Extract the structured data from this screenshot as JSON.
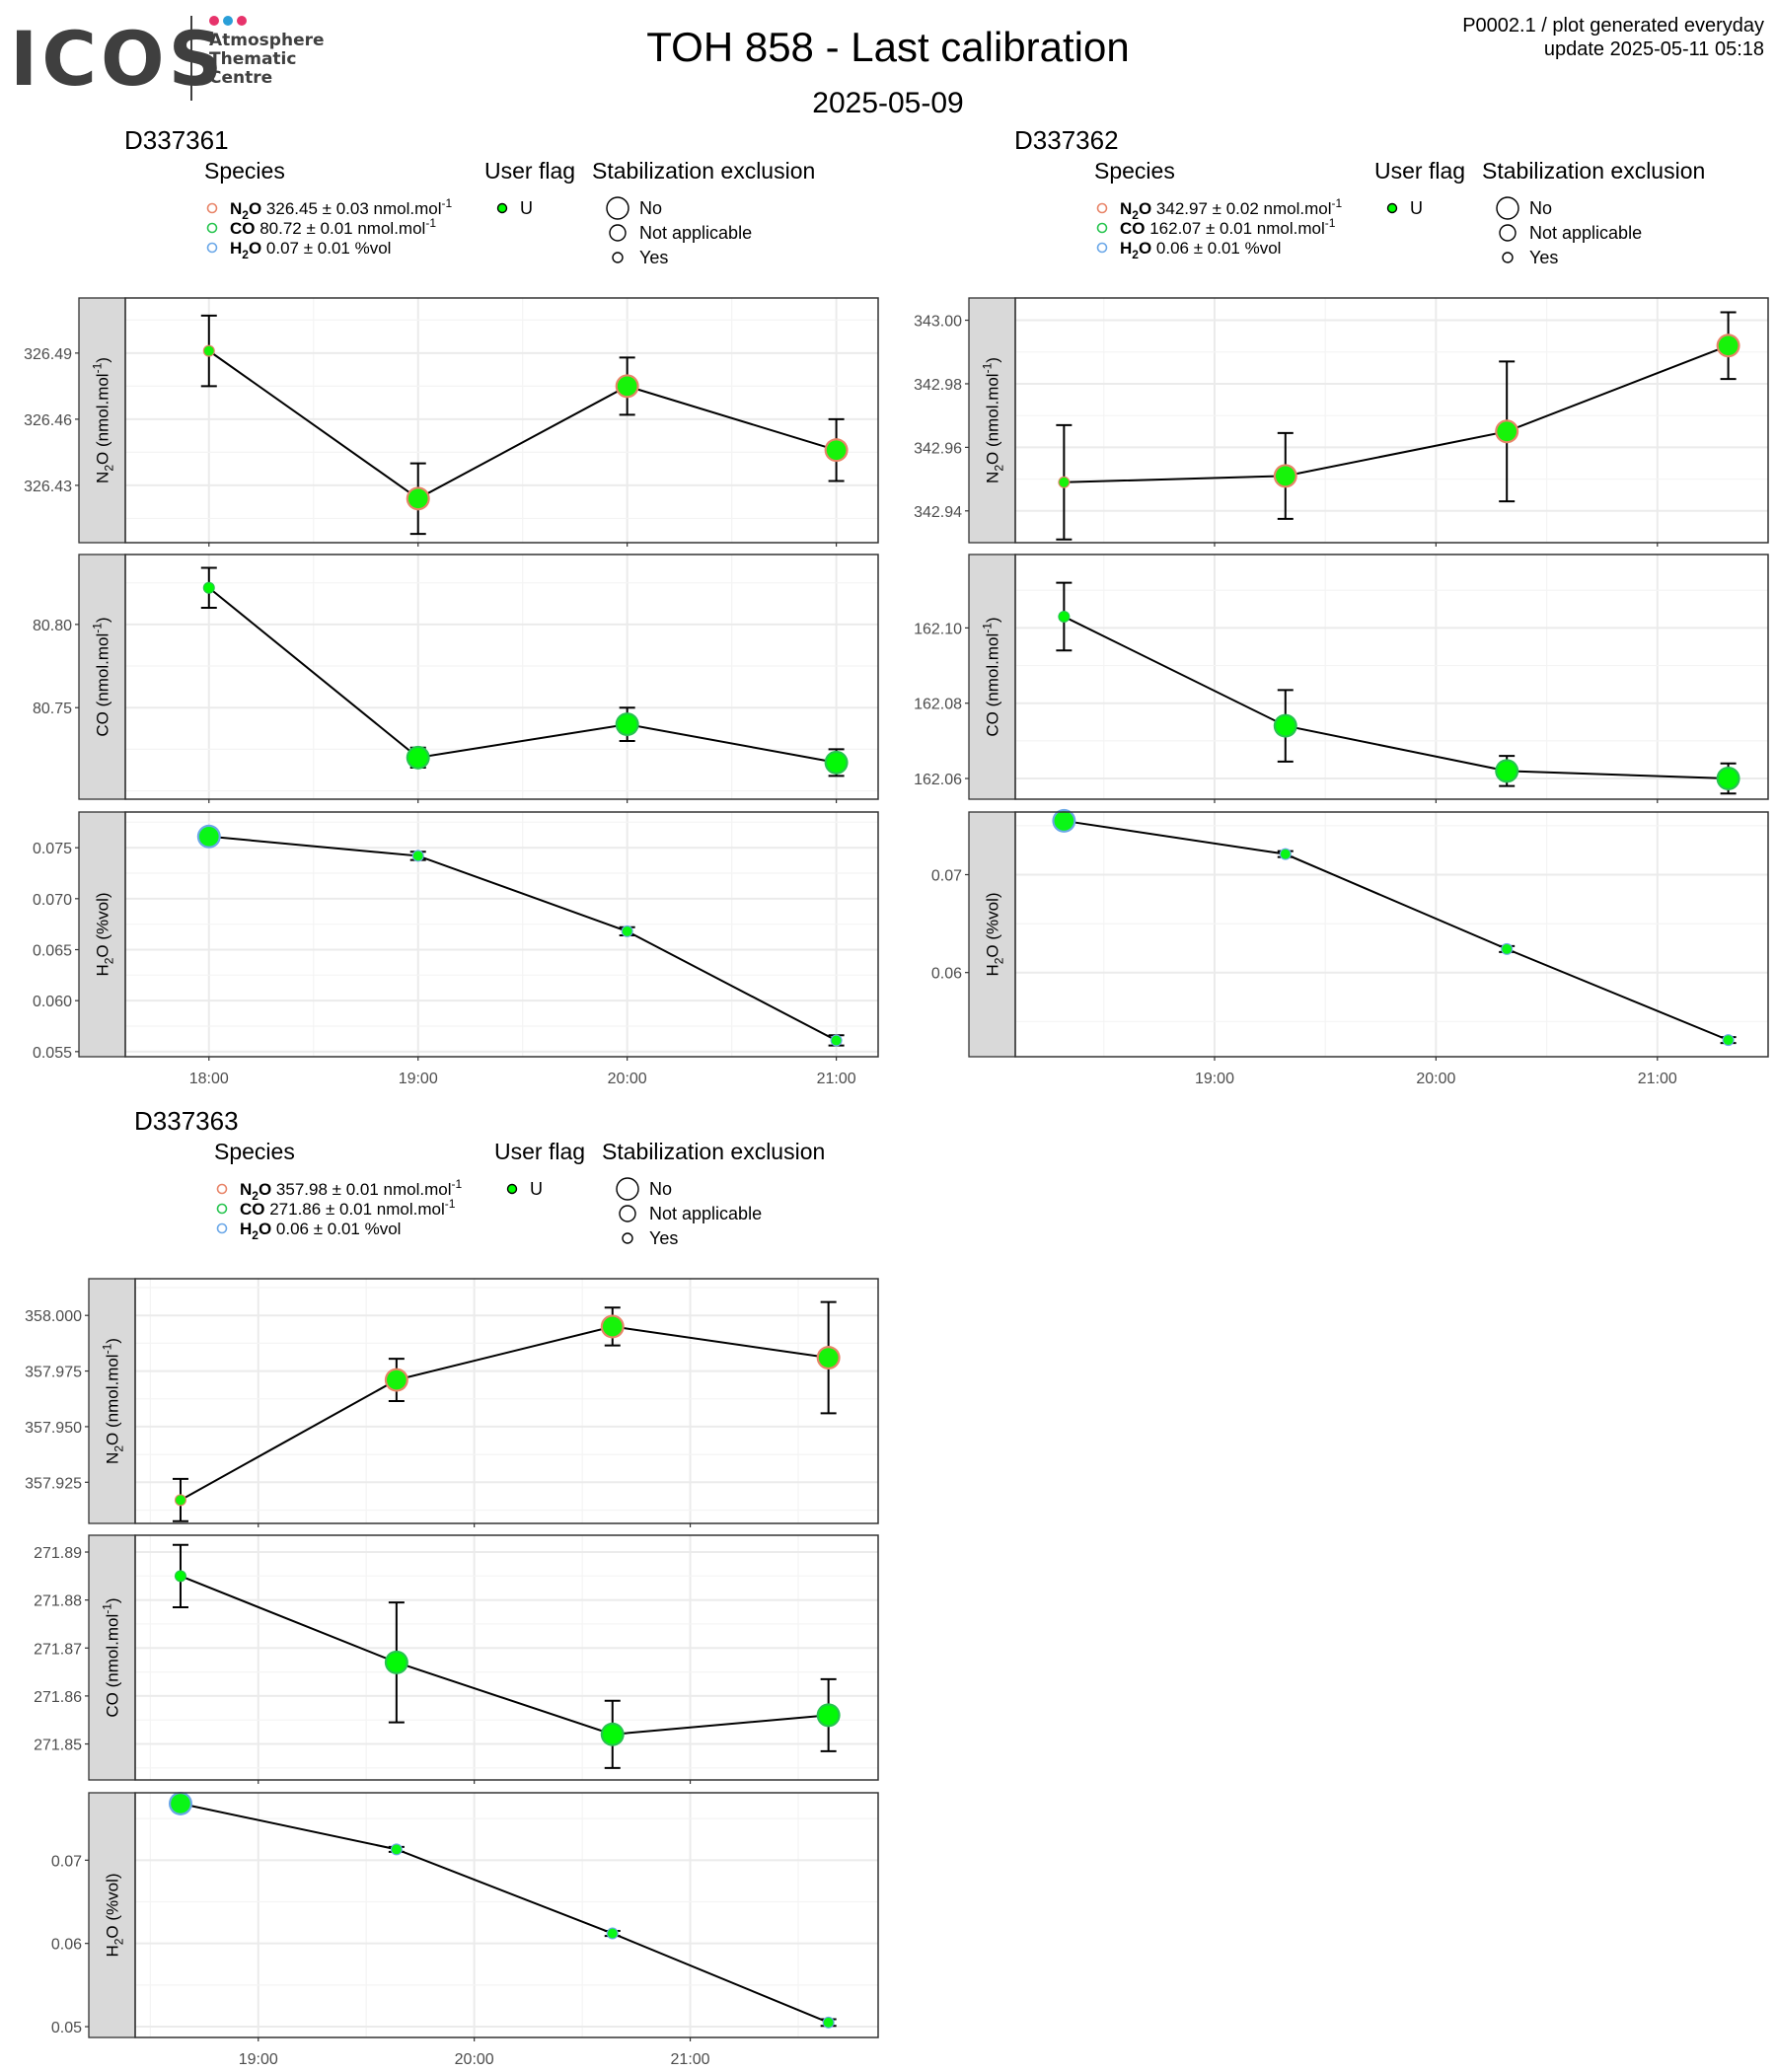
{
  "header": {
    "logo_text": "ICOS",
    "logo_sub": [
      "Atmosphere",
      "Thematic",
      "Centre"
    ],
    "logo_dot_colors": [
      "#e7336b",
      "#2a9fd8",
      "#e7336b"
    ],
    "title": "TOH 858 - Last calibration",
    "subtitle": "2025-05-09",
    "meta_line1": "P0002.1 / plot generated everyday",
    "meta_line2": "update  2025-05-11 05:18"
  },
  "legend_labels": {
    "species": "Species",
    "user_flag": "User flag",
    "stab": "Stabilization exclusion",
    "flag_value": "U",
    "stab_values": [
      "No",
      "Not applicable",
      "Yes"
    ]
  },
  "colors": {
    "n2o": "#e88468",
    "co": "#26c44e",
    "h2o": "#6aa7e8",
    "point": "#00ff00"
  },
  "chart_data": [
    {
      "type": "line",
      "title": "D337361",
      "legend": [
        {
          "sym": "N",
          "sub": "2",
          "sym2": "O",
          "text": " 326.45 ± 0.03 nmol.mol",
          "sup": "-1",
          "color": "n2o"
        },
        {
          "sym": "CO",
          "sub": "",
          "sym2": "",
          "text": " 80.72 ± 0.01 nmol.mol",
          "sup": "-1",
          "color": "co"
        },
        {
          "sym": "H",
          "sub": "2",
          "sym2": "O",
          "text": " 0.07 ± 0.01 %vol",
          "sup": "",
          "color": "h2o"
        }
      ],
      "x": [
        "18:00",
        "19:00",
        "20:00",
        "21:00"
      ],
      "x_values": [
        18.0,
        19.0,
        20.0,
        21.0
      ],
      "x_ticks": [
        "18:00",
        "19:00",
        "20:00",
        "21:00"
      ],
      "x_tick_values": [
        18.0,
        19.0,
        20.0,
        21.0
      ],
      "xlim": [
        17.6,
        21.2
      ],
      "panels": [
        {
          "ylabel": "N2O (nmol.mol-1)",
          "ylim": [
            326.404,
            326.515
          ],
          "yticks": [
            "326.43",
            "326.46",
            "326.49"
          ],
          "ytick_values": [
            326.43,
            326.46,
            326.49
          ],
          "values": [
            326.491,
            326.424,
            326.475,
            326.446
          ],
          "err": [
            0.016,
            0.016,
            0.013,
            0.014
          ],
          "sizes": [
            "Yes",
            "No",
            "No",
            "No"
          ],
          "fill": "n2o"
        },
        {
          "ylabel": "CO (nmol.mol-1)",
          "ylim": [
            80.695,
            80.842
          ],
          "yticks": [
            "80.75",
            "80.80"
          ],
          "ytick_values": [
            80.75,
            80.8
          ],
          "values": [
            80.822,
            80.72,
            80.74,
            80.717
          ],
          "err": [
            0.012,
            0.006,
            0.01,
            0.008
          ],
          "sizes": [
            "Yes",
            "No",
            "No",
            "No"
          ],
          "fill": "co"
        },
        {
          "ylabel": "H2O (%vol)",
          "ylim": [
            0.0545,
            0.0785
          ],
          "yticks": [
            "0.055",
            "0.060",
            "0.065",
            "0.070",
            "0.075"
          ],
          "ytick_values": [
            0.055,
            0.06,
            0.065,
            0.07,
            0.075
          ],
          "values": [
            0.0761,
            0.0742,
            0.0668,
            0.0561
          ],
          "err": [
            0.0006,
            0.0004,
            0.0004,
            0.0005
          ],
          "sizes": [
            "No",
            "Yes",
            "Yes",
            "Yes"
          ],
          "fill": "h2o"
        }
      ]
    },
    {
      "type": "line",
      "title": "D337362",
      "legend": [
        {
          "sym": "N",
          "sub": "2",
          "sym2": "O",
          "text": " 342.97 ± 0.02 nmol.mol",
          "sup": "-1",
          "color": "n2o"
        },
        {
          "sym": "CO",
          "sub": "",
          "sym2": "",
          "text": " 162.07 ± 0.01 nmol.mol",
          "sup": "-1",
          "color": "co"
        },
        {
          "sym": "H",
          "sub": "2",
          "sym2": "O",
          "text": " 0.06 ± 0.01 %vol",
          "sup": "",
          "color": "h2o"
        }
      ],
      "x": [
        "18:20",
        "19:20",
        "20:20",
        "21:20"
      ],
      "x_values": [
        18.32,
        19.32,
        20.32,
        21.32
      ],
      "x_ticks": [
        "19:00",
        "20:00",
        "21:00"
      ],
      "x_tick_values": [
        19.0,
        20.0,
        21.0
      ],
      "xlim": [
        18.1,
        21.5
      ],
      "panels": [
        {
          "ylabel": "N2O (nmol.mol-1)",
          "ylim": [
            342.93,
            343.007
          ],
          "yticks": [
            "342.94",
            "342.96",
            "342.98",
            "343.00"
          ],
          "ytick_values": [
            342.94,
            342.96,
            342.98,
            343.0
          ],
          "values": [
            342.949,
            342.951,
            342.965,
            342.992
          ],
          "err": [
            0.018,
            0.0135,
            0.022,
            0.0105
          ],
          "sizes": [
            "Yes",
            "No",
            "No",
            "No"
          ],
          "fill": "n2o"
        },
        {
          "ylabel": "CO (nmol.mol-1)",
          "ylim": [
            162.0545,
            162.1195
          ],
          "yticks": [
            "162.06",
            "162.08",
            "162.10"
          ],
          "ytick_values": [
            162.06,
            162.08,
            162.1
          ],
          "values": [
            162.103,
            162.074,
            162.062,
            162.06
          ],
          "err": [
            0.009,
            0.0095,
            0.004,
            0.004
          ],
          "sizes": [
            "Yes",
            "No",
            "No",
            "No"
          ],
          "fill": "co"
        },
        {
          "ylabel": "H2O (%vol)",
          "ylim": [
            0.0514,
            0.0764
          ],
          "yticks": [
            "0.06",
            "0.07"
          ],
          "ytick_values": [
            0.06,
            0.07
          ],
          "values": [
            0.0755,
            0.0721,
            0.0624,
            0.0531
          ],
          "err": [
            0.0004,
            0.0003,
            0.0003,
            0.0003
          ],
          "sizes": [
            "No",
            "Yes",
            "Yes",
            "Yes"
          ],
          "fill": "h2o"
        }
      ]
    },
    {
      "type": "line",
      "title": "D337363",
      "legend": [
        {
          "sym": "N",
          "sub": "2",
          "sym2": "O",
          "text": " 357.98 ± 0.01 nmol.mol",
          "sup": "-1",
          "color": "n2o"
        },
        {
          "sym": "CO",
          "sub": "",
          "sym2": "",
          "text": " 271.86 ± 0.01 nmol.mol",
          "sup": "-1",
          "color": "co"
        },
        {
          "sym": "H",
          "sub": "2",
          "sym2": "O",
          "text": " 0.06 ± 0.01 %vol",
          "sup": "",
          "color": "h2o"
        }
      ],
      "x": [
        "18:38",
        "19:38",
        "20:38",
        "21:38"
      ],
      "x_values": [
        18.64,
        19.64,
        20.64,
        21.64
      ],
      "x_ticks": [
        "19:00",
        "20:00",
        "21:00"
      ],
      "x_tick_values": [
        19.0,
        20.0,
        21.0
      ],
      "xlim": [
        18.43,
        21.87
      ],
      "panels": [
        {
          "ylabel": "N2O (nmol.mol-1)",
          "ylim": [
            357.9065,
            358.0165
          ],
          "yticks": [
            "357.925",
            "357.950",
            "357.975",
            "358.000"
          ],
          "ytick_values": [
            357.925,
            357.95,
            357.975,
            358.0
          ],
          "values": [
            357.917,
            357.971,
            357.995,
            357.981
          ],
          "err": [
            0.0095,
            0.0095,
            0.0085,
            0.025
          ],
          "sizes": [
            "Yes",
            "No",
            "No",
            "No"
          ],
          "fill": "n2o"
        },
        {
          "ylabel": "CO (nmol.mol-1)",
          "ylim": [
            271.8425,
            271.8935
          ],
          "yticks": [
            "271.85",
            "271.86",
            "271.87",
            "271.88",
            "271.89"
          ],
          "ytick_values": [
            271.85,
            271.86,
            271.87,
            271.88,
            271.89
          ],
          "values": [
            271.885,
            271.867,
            271.852,
            271.856
          ],
          "err": [
            0.0065,
            0.0125,
            0.007,
            0.0075
          ],
          "sizes": [
            "Yes",
            "No",
            "No",
            "No"
          ],
          "fill": "co"
        },
        {
          "ylabel": "H2O (%vol)",
          "ylim": [
            0.0487,
            0.0781
          ],
          "yticks": [
            "0.05",
            "0.06",
            "0.07"
          ],
          "ytick_values": [
            0.05,
            0.06,
            0.07
          ],
          "values": [
            0.0768,
            0.0713,
            0.0612,
            0.0505
          ],
          "err": [
            0.0004,
            0.0003,
            0.0003,
            0.0004
          ],
          "sizes": [
            "No",
            "Yes",
            "Yes",
            "Yes"
          ],
          "fill": "h2o"
        }
      ]
    }
  ]
}
